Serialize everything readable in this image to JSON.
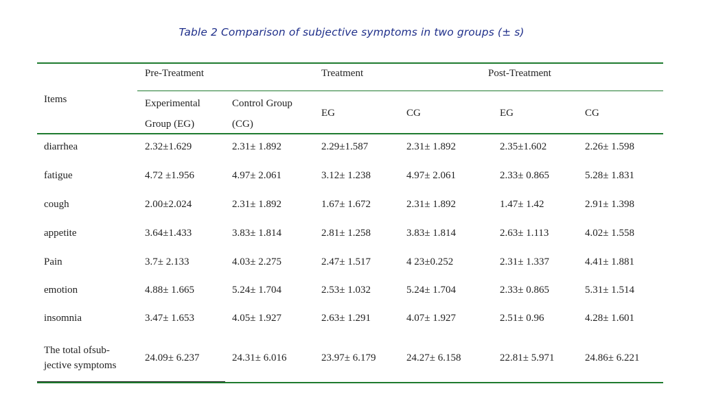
{
  "caption": "Table 2 Comparison of subjective symptoms in two groups (± s)",
  "header": {
    "items_label": "Items",
    "groups": [
      "Pre-Treatment",
      "Treatment",
      "Post-Treatment"
    ],
    "subcolumns": [
      [
        "Experimental",
        "Group (EG)"
      ],
      [
        "Control Group",
        "(CG)"
      ],
      [
        "EG"
      ],
      [
        "CG"
      ],
      [
        "EG"
      ],
      [
        "CG"
      ]
    ]
  },
  "rows": [
    {
      "label": "diarrhea",
      "values": [
        "2.32±1.629",
        "2.31± 1.892",
        "2.29±1.587",
        "2.31± 1.892",
        "2.35±1.602",
        "2.26± 1.598"
      ]
    },
    {
      "label": "fatigue",
      "values": [
        "4.72 ±1.956",
        "4.97± 2.061",
        "3.12± 1.238",
        "4.97± 2.061",
        "2.33± 0.865",
        "5.28± 1.831"
      ]
    },
    {
      "label": "cough",
      "values": [
        "2.00±2.024",
        "2.31± 1.892",
        "1.67± 1.672",
        "2.31± 1.892",
        "1.47± 1.42",
        "2.91± 1.398"
      ]
    },
    {
      "label": "appetite",
      "values": [
        "3.64±1.433",
        "3.83± 1.814",
        "2.81± 1.258",
        "3.83± 1.814",
        "2.63± 1.113",
        "4.02± 1.558"
      ]
    },
    {
      "label": "Pain",
      "values": [
        "3.7± 2.133",
        "4.03± 2.275",
        "2.47± 1.517",
        "4 23±0.252",
        "2.31± 1.337",
        "4.41± 1.881"
      ]
    },
    {
      "label": "emotion",
      "values": [
        "4.88± 1.665",
        "5.24± 1.704",
        "2.53± 1.032",
        "5.24± 1.704",
        "2.33± 0.865",
        "5.31± 1.514"
      ]
    },
    {
      "label": "insomnia",
      "values": [
        "3.47± 1.653",
        "4.05± 1.927",
        "2.63± 1.291",
        "4.07± 1.927",
        "2.51± 0.96",
        "4.28± 1.601"
      ]
    }
  ],
  "total_row": {
    "label_lines": [
      "The total ofsub-",
      "jective symptoms"
    ],
    "values": [
      "24.09± 6.237",
      "24.31± 6.016",
      "23.97± 6.179",
      "24.27± 6.158",
      "22.81± 5.971",
      "24.86± 6.221"
    ]
  },
  "colors": {
    "caption": "#1f2f8a",
    "rules": "#1e7a2e",
    "text": "#222222"
  }
}
